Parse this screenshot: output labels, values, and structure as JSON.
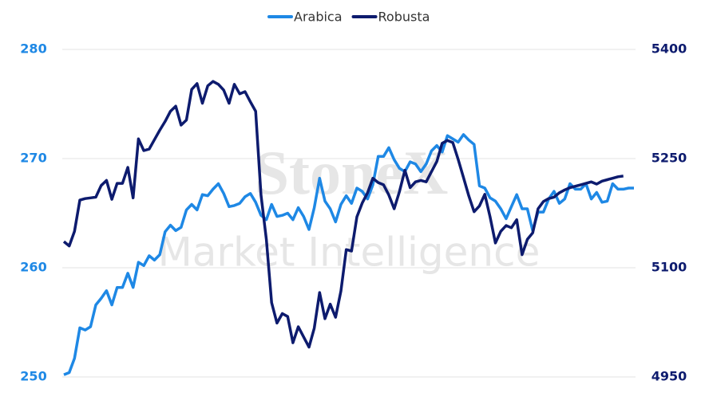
{
  "chart_data": {
    "type": "line",
    "watermark": [
      "StoneX",
      "Market Intelligence"
    ],
    "categories": [
      null,
      null,
      null,
      null,
      null,
      null,
      null,
      null,
      null,
      null,
      null,
      null,
      null,
      null,
      null,
      null,
      null,
      null,
      null,
      null,
      null,
      null,
      null,
      null,
      null,
      null,
      null,
      null,
      null,
      null,
      null,
      null,
      null,
      null,
      null,
      null,
      null,
      null,
      null,
      null,
      null,
      null,
      null,
      null,
      null,
      null,
      null,
      null,
      null,
      null,
      null,
      null,
      null,
      null,
      null,
      null,
      null,
      null,
      null,
      null,
      null,
      null,
      null,
      null,
      null,
      null,
      null,
      null,
      null,
      null,
      null,
      null,
      null,
      null,
      null,
      null,
      null,
      null,
      null,
      null,
      null,
      null,
      null,
      null,
      null,
      null,
      null,
      null,
      null,
      null,
      null,
      null,
      null,
      null,
      null,
      null,
      null,
      null,
      null,
      null,
      null,
      null,
      null,
      null,
      null,
      null,
      null,
      null
    ],
    "series": [
      {
        "name": "Arabica",
        "color": "#1e88e5",
        "values": [
          250.2,
          250.4,
          251.7,
          254.5,
          254.3,
          254.6,
          256.6,
          257.2,
          257.9,
          256.6,
          258.2,
          258.2,
          259.5,
          258.2,
          260.5,
          260.2,
          261.1,
          260.7,
          261.2,
          263.3,
          263.9,
          263.4,
          263.7,
          265.3,
          265.8,
          265.3,
          266.7,
          266.6,
          267.2,
          267.7,
          266.8,
          265.6,
          265.7,
          265.9,
          266.5,
          266.8,
          266.0,
          264.8,
          264.4,
          265.8,
          264.7,
          264.8,
          265.0,
          264.4,
          265.5,
          264.7,
          263.5,
          265.5,
          268.2,
          266.1,
          265.4,
          264.2,
          265.8,
          266.6,
          265.9,
          267.3,
          267.0,
          266.3,
          267.6,
          270.2,
          270.2,
          271.0,
          269.9,
          269.1,
          268.8,
          269.7,
          269.5,
          268.8,
          269.5,
          270.7,
          271.2,
          270.6,
          272.1,
          271.8,
          271.5,
          272.2,
          271.7,
          271.3,
          267.5,
          267.3,
          266.4,
          266.1,
          265.4,
          264.5,
          265.6,
          266.7,
          265.4,
          265.4,
          263.4,
          265.1,
          265.1,
          266.3,
          267.0,
          265.9,
          266.3,
          267.7,
          267.2,
          267.2,
          267.7,
          266.3,
          266.9,
          266.0,
          266.1,
          267.7,
          267.2,
          267.2,
          267.3,
          267.3
        ]
      },
      {
        "name": "Robusta",
        "color": "#0d1b6e",
        "axis": "y2",
        "values": [
          5136,
          5130,
          5150,
          5193,
          5195,
          5196,
          5197,
          5213,
          5220,
          5194,
          5216,
          5216,
          5238,
          5196,
          5277,
          5261,
          5263,
          5276,
          5289,
          5301,
          5315,
          5322,
          5296,
          5303,
          5345,
          5353,
          5326,
          5350,
          5356,
          5352,
          5344,
          5326,
          5352,
          5339,
          5342,
          5328,
          5315,
          5200,
          5139,
          5052,
          5024,
          5037,
          5033,
          4997,
          5019,
          5005,
          4991,
          5017,
          5066,
          5030,
          5050,
          5032,
          5068,
          5125,
          5123,
          5170,
          5189,
          5203,
          5223,
          5217,
          5214,
          5200,
          5181,
          5205,
          5234,
          5210,
          5218,
          5220,
          5218,
          5232,
          5246,
          5271,
          5275,
          5272,
          5249,
          5224,
          5199,
          5177,
          5185,
          5201,
          5170,
          5134,
          5150,
          5158,
          5155,
          5166,
          5118,
          5139,
          5148,
          5181,
          5191,
          5195,
          5197,
          5203,
          5207,
          5210,
          5212,
          5214,
          5216,
          5218,
          5215,
          5219,
          5221,
          5223,
          5225,
          5226,
          null,
          null
        ]
      }
    ],
    "ylim": [
      250,
      280
    ],
    "yticks": [
      250,
      260,
      270,
      280
    ],
    "y2lim": [
      4950,
      5400
    ],
    "y2ticks": [
      4950,
      5100,
      5250,
      5400
    ],
    "y_tick_color": "#1e88e5",
    "y2_tick_color": "#0d1b6e",
    "grid": true,
    "legend": "top"
  }
}
